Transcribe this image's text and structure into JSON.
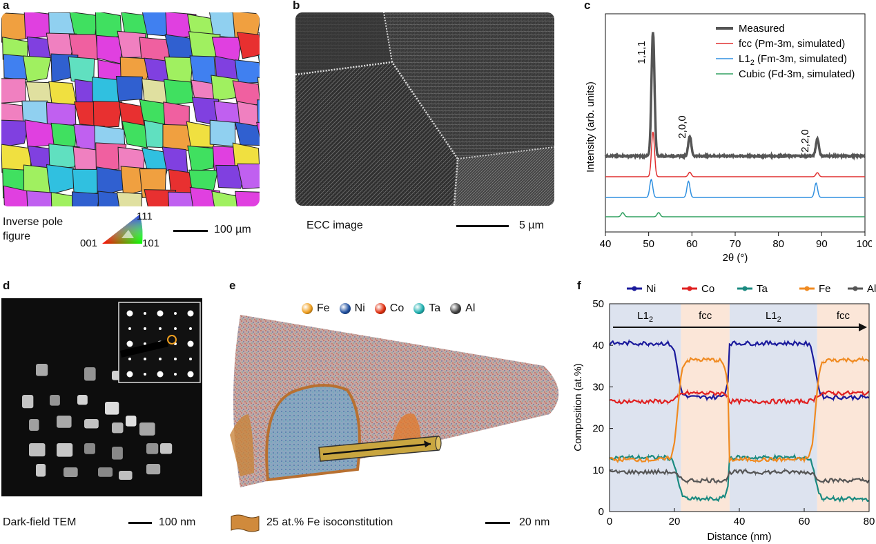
{
  "panels": {
    "a": {
      "letter": "a",
      "caption_line1": "Inverse pole",
      "caption_line2": "figure",
      "triangle": {
        "top": "111",
        "left": "001",
        "right": "101"
      },
      "scale_label": "100 µm"
    },
    "b": {
      "letter": "b",
      "caption": "ECC image",
      "scale_label": "5 µm"
    },
    "c": {
      "letter": "c"
    },
    "d": {
      "letter": "d",
      "caption": "Dark-field TEM",
      "scale_label": "100 nm"
    },
    "e": {
      "letter": "e",
      "legend": [
        "Fe",
        "Ni",
        "Co",
        "Ta",
        "Al"
      ],
      "legend_colors": [
        "#f0a020",
        "#2050a0",
        "#e03010",
        "#20b0b0",
        "#404040"
      ],
      "iso_label": "25 at.% Fe isoconstitution",
      "scale_label": "20 nm"
    },
    "f": {
      "letter": "f"
    }
  },
  "chart_data": [
    {
      "type": "line",
      "xlabel": "2θ (°)",
      "ylabel": "Intensity (arb. units)",
      "xlim": [
        40,
        100
      ],
      "xticks": [
        40,
        50,
        60,
        70,
        80,
        90,
        100
      ],
      "legend_placement": "top-right",
      "series": [
        {
          "name": "Measured",
          "color": "#555555",
          "peaks": [
            [
              51,
              10
            ],
            [
              59.5,
              1.6
            ],
            [
              89,
              1.4
            ]
          ]
        },
        {
          "name": "fcc (Pm-3m, simulated)",
          "color": "#e03030",
          "peaks": [
            [
              51,
              10
            ],
            [
              59.5,
              1.0
            ],
            [
              89,
              0.9
            ]
          ]
        },
        {
          "name": "L12 (Fm-3m, simulated)",
          "color": "#3090e0",
          "peaks": [
            [
              50.6,
              1.0
            ],
            [
              59.2,
              0.9
            ],
            [
              88.7,
              0.8
            ]
          ]
        },
        {
          "name": "Cubic (Fd-3m, simulated)",
          "color": "#30a060",
          "peaks": [
            [
              44,
              0.2
            ],
            [
              52.3,
              0.2
            ]
          ]
        }
      ],
      "annotations": [
        "1,1,1",
        "2,0,0",
        "2,2,0"
      ],
      "legend_labels": [
        "Measured",
        "fcc (Pm-3m, simulated)",
        "L1",
        "(Fm-3m, simulated)",
        "Cubic (Fd-3m, simulated)"
      ],
      "legend_subscript": "2"
    },
    {
      "type": "line",
      "xlabel": "Distance (nm)",
      "ylabel": "Composition (at.%)",
      "xlim": [
        0,
        80
      ],
      "ylim": [
        0,
        50
      ],
      "xticks": [
        0,
        20,
        40,
        60,
        80
      ],
      "yticks": [
        0,
        10,
        20,
        30,
        40,
        50
      ],
      "regions": [
        {
          "label": "L1",
          "sub": "2",
          "from": 0,
          "to": 22,
          "color": "#dde3ef"
        },
        {
          "label": "fcc",
          "sub": "",
          "from": 22,
          "to": 37,
          "color": "#fbe6d8"
        },
        {
          "label": "L1",
          "sub": "2",
          "from": 37,
          "to": 64,
          "color": "#dde3ef"
        },
        {
          "label": "fcc",
          "sub": "",
          "from": 64,
          "to": 80,
          "color": "#fbe6d8"
        }
      ],
      "series": [
        {
          "name": "Ni",
          "color": "#1a1a9c",
          "l12": 40.5,
          "fcc": 27.5
        },
        {
          "name": "Co",
          "color": "#e02020",
          "l12": 26.5,
          "fcc": 28.5
        },
        {
          "name": "Ta",
          "color": "#1a8a80",
          "l12": 13,
          "fcc": 3
        },
        {
          "name": "Fe",
          "color": "#f08a20",
          "l12": 12.5,
          "fcc": 36.5
        },
        {
          "name": "Al",
          "color": "#555555",
          "l12": 9.5,
          "fcc": 7.5
        }
      ]
    }
  ]
}
